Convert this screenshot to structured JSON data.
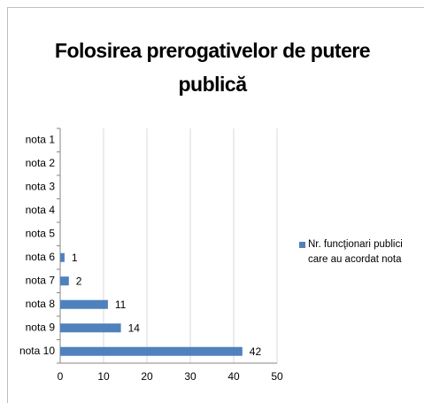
{
  "chart_data": {
    "type": "bar",
    "orientation": "horizontal",
    "title": "Folosirea prerogativelor de putere publică",
    "categories": [
      "nota 1",
      "nota 2",
      "nota 3",
      "nota 4",
      "nota 5",
      "nota 6",
      "nota 7",
      "nota 8",
      "nota 9",
      "nota 10"
    ],
    "series": [
      {
        "name": "Nr. funcţionari publici care au acordat nota",
        "color": "#4f81bd",
        "values": [
          null,
          null,
          null,
          null,
          null,
          1,
          2,
          11,
          14,
          42
        ]
      }
    ],
    "xlim": [
      0,
      50
    ],
    "xticks": [
      0,
      10,
      20,
      30,
      40,
      50
    ],
    "grid": true,
    "legend": "right"
  }
}
